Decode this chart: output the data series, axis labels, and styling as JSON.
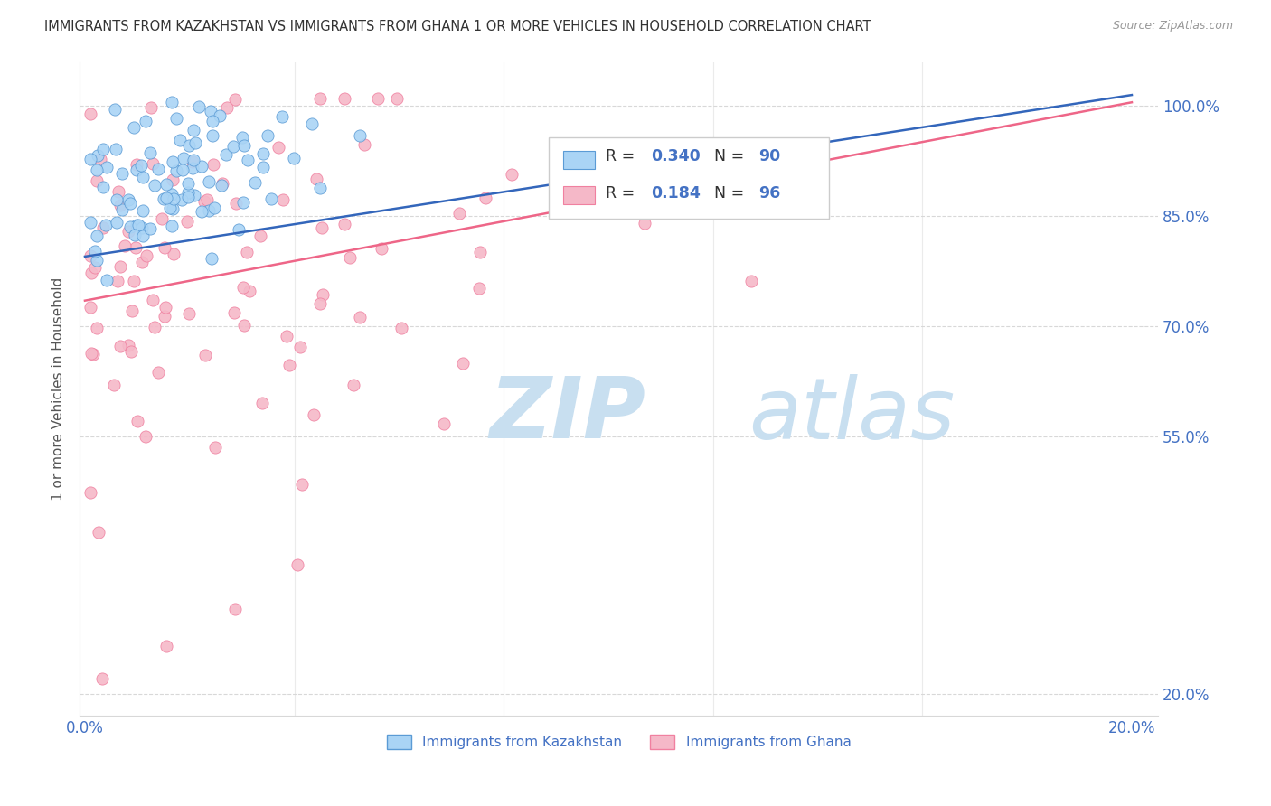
{
  "title": "IMMIGRANTS FROM KAZAKHSTAN VS IMMIGRANTS FROM GHANA 1 OR MORE VEHICLES IN HOUSEHOLD CORRELATION CHART",
  "source": "Source: ZipAtlas.com",
  "ylabel": "1 or more Vehicles in Household",
  "y_ticks_right": [
    0.2,
    0.55,
    0.7,
    0.85,
    1.0
  ],
  "y_labels_right": [
    "20.0%",
    "55.0%",
    "70.0%",
    "85.0%",
    "100.0%"
  ],
  "xlim": [
    -0.001,
    0.205
  ],
  "ylim": [
    0.17,
    1.06
  ],
  "kaz_R": 0.34,
  "kaz_N": 90,
  "gha_R": 0.184,
  "gha_N": 96,
  "kaz_color": "#aad4f5",
  "gha_color": "#f5b8c8",
  "kaz_edge_color": "#5b9bd5",
  "gha_edge_color": "#f080a0",
  "kaz_line_color": "#3366bb",
  "gha_line_color": "#ee6688",
  "axis_label_color": "#4472c4",
  "title_color": "#333333",
  "grid_color": "#d8d8d8",
  "watermark": "ZIPatlas",
  "watermark_color_zip": "#c8dff0",
  "watermark_color_atlas": "#c8dff0",
  "legend_box_color": "#f0f0f0",
  "kaz_line_intercept": 0.795,
  "kaz_line_slope": 1.1,
  "gha_line_intercept": 0.735,
  "gha_line_slope": 1.35
}
